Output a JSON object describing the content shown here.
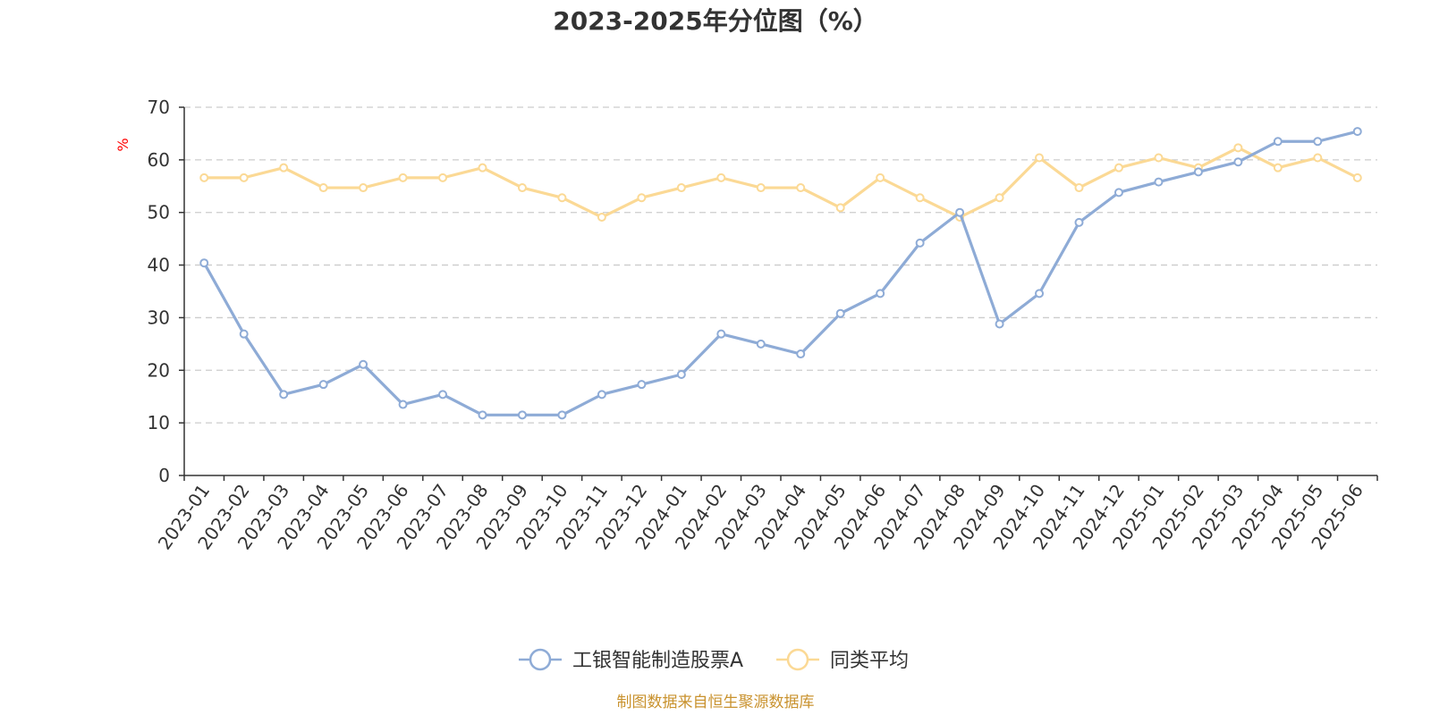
{
  "chart_data": {
    "type": "line",
    "title": "2023-2025年分位图（%）",
    "ylabel": "%",
    "xlabel": "",
    "ylim": [
      0,
      70
    ],
    "yticks": [
      0,
      10,
      20,
      30,
      40,
      50,
      60,
      70
    ],
    "grid": true,
    "legend_position": "bottom-center",
    "categories": [
      "2023-01",
      "2023-02",
      "2023-03",
      "2023-04",
      "2023-05",
      "2023-06",
      "2023-07",
      "2023-08",
      "2023-09",
      "2023-10",
      "2023-11",
      "2023-12",
      "2024-01",
      "2024-02",
      "2024-03",
      "2024-04",
      "2024-05",
      "2024-06",
      "2024-07",
      "2024-08",
      "2024-09",
      "2024-10",
      "2024-11",
      "2024-12",
      "2025-01",
      "2025-02",
      "2025-03",
      "2025-04",
      "2025-05",
      "2025-06"
    ],
    "series": [
      {
        "name": "工银智能制造股票A",
        "color": "#8eabd6",
        "values": [
          40.4,
          26.9,
          15.4,
          17.3,
          21.1,
          13.5,
          15.4,
          11.5,
          11.5,
          11.5,
          15.4,
          17.3,
          19.2,
          26.9,
          25.0,
          23.1,
          30.8,
          34.6,
          44.2,
          50.0,
          28.8,
          34.6,
          48.1,
          53.8,
          55.8,
          57.7,
          59.6,
          63.5,
          63.5,
          65.4
        ]
      },
      {
        "name": "同类平均",
        "color": "#fbd995",
        "values": [
          56.6,
          56.6,
          58.5,
          54.7,
          54.7,
          56.6,
          56.6,
          58.5,
          54.7,
          52.8,
          49.1,
          52.8,
          54.7,
          56.6,
          54.7,
          54.7,
          50.9,
          56.6,
          52.8,
          49.1,
          52.8,
          60.4,
          54.7,
          58.5,
          60.4,
          58.5,
          62.3,
          58.5,
          60.4,
          56.6
        ]
      }
    ],
    "source": "制图数据来自恒生聚源数据库",
    "source_color": "#c9922e"
  }
}
